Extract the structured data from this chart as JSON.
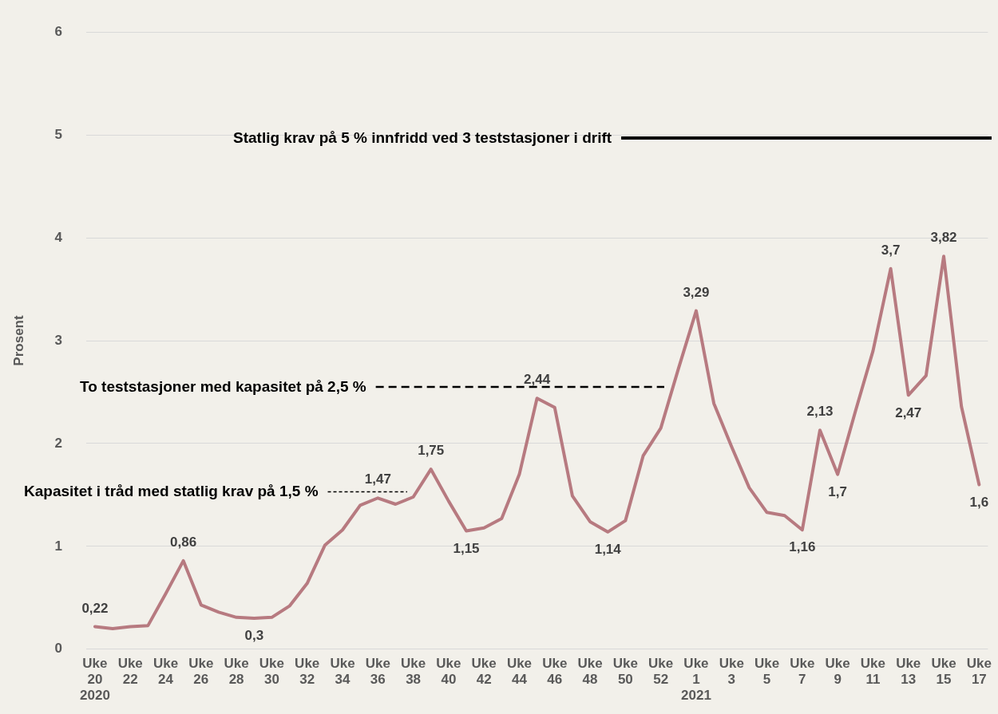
{
  "chart_data": {
    "type": "line",
    "ylabel": "Prosent",
    "categories": [
      "Uke\n20\n2020",
      null,
      "Uke\n22",
      null,
      "Uke\n24",
      null,
      "Uke\n26",
      null,
      "Uke\n28",
      null,
      "Uke\n30",
      null,
      "Uke\n32",
      null,
      "Uke\n34",
      null,
      "Uke\n36",
      null,
      "Uke\n38",
      null,
      "Uke\n40",
      null,
      "Uke\n42",
      null,
      "Uke\n44",
      null,
      "Uke\n46",
      null,
      "Uke\n48",
      null,
      "Uke\n50",
      null,
      "Uke\n52",
      null,
      "Uke\n1\n2021",
      null,
      "Uke\n3",
      null,
      "Uke\n5",
      null,
      "Uke\n7",
      null,
      "Uke\n9",
      null,
      "Uke\n11",
      null,
      "Uke\n13",
      null,
      "Uke\n15",
      null,
      "Uke\n17"
    ],
    "series": [
      {
        "color": "#b77a80",
        "values": [
          0.22,
          0.2,
          0.22,
          0.23,
          0.54,
          0.86,
          0.43,
          0.36,
          0.31,
          0.3,
          0.31,
          0.42,
          0.64,
          1.01,
          1.16,
          1.4,
          1.47,
          1.41,
          1.48,
          1.75,
          1.44,
          1.15,
          1.18,
          1.27,
          1.7,
          2.44,
          2.35,
          1.49,
          1.24,
          1.14,
          1.25,
          1.88,
          2.15,
          2.73,
          3.29,
          2.39,
          1.97,
          1.57,
          1.33,
          1.3,
          1.16,
          2.13,
          1.7,
          2.31,
          2.9,
          3.7,
          2.47,
          2.66,
          3.82,
          2.36,
          1.6
        ],
        "value_labels": [
          "0,22",
          null,
          null,
          null,
          null,
          "0,86",
          null,
          null,
          null,
          "0,3",
          null,
          null,
          null,
          null,
          null,
          null,
          "1,47",
          null,
          null,
          "1,75",
          null,
          "1,15",
          null,
          null,
          null,
          "2,44",
          null,
          null,
          null,
          "1,14",
          null,
          null,
          null,
          null,
          "3,29",
          null,
          null,
          null,
          null,
          null,
          "1,16",
          "2,13",
          "1,7",
          null,
          null,
          "3,7",
          "2,47",
          null,
          "3,82",
          null,
          "1,6"
        ]
      }
    ],
    "ylim": [
      0,
      6
    ],
    "yticks": [
      0,
      1,
      2,
      3,
      4,
      5,
      6
    ],
    "grid": "y",
    "legend": false,
    "marker": "none",
    "line_style": "solid",
    "ref_lines": [
      {
        "axis": "y",
        "value": 1.53,
        "label": "Kapasitet i tråd med statlig krav på 1,5 %",
        "color": "#000000",
        "line_style": "dashed"
      },
      {
        "axis": "y",
        "value": 2.55,
        "label": "To teststasjoner med kapasitet på 2,5 %",
        "color": "#000000",
        "line_style": "dashed"
      },
      {
        "axis": "y",
        "value": 4.97,
        "label": "Statlig krav på 5 % innfridd ved 3 teststasjoner i drift",
        "color": "#000000",
        "line_style": "solid"
      }
    ]
  }
}
